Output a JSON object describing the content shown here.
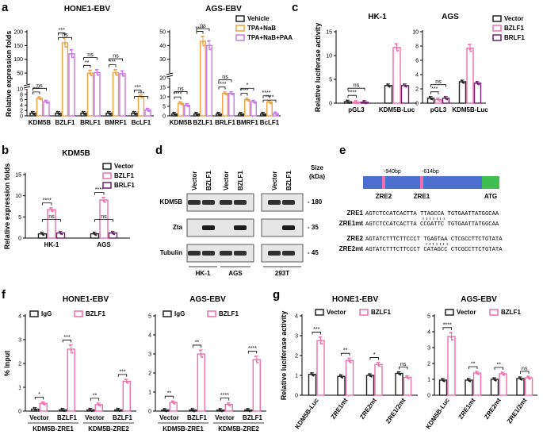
{
  "panels": {
    "a": "a",
    "b": "b",
    "c": "c",
    "d": "d",
    "e": "e",
    "f": "f",
    "g": "g"
  },
  "colors": {
    "vector": "#222222",
    "bzlf1": "#f06ea9",
    "brlf1": "#6e1f6e",
    "vehicle": "#222222",
    "tpa_nab": "#f0a13c",
    "tpa_nab_paa": "#c878e8",
    "promoter": "#4a6fcf",
    "zre": "#f06ea9",
    "atg": "#3fbf4f"
  },
  "chart_data": [
    {
      "id": "a1",
      "type": "bar",
      "title": "HONE1-EBV",
      "ylabel": "Relative expression folds",
      "categories": [
        "KDM5B",
        "BZLF1",
        "BRLF1",
        "BMRF1",
        "BcLF1"
      ],
      "series": [
        {
          "name": "Vehicle",
          "values": [
            1,
            1,
            1,
            1,
            1
          ]
        },
        {
          "name": "TPA+NaB",
          "values": [
            6.5,
            160,
            50,
            52,
            7.2
          ]
        },
        {
          "name": "TPA+NaB+PAA",
          "values": [
            5.2,
            120,
            52,
            48,
            2.2
          ]
        }
      ],
      "yticks": [
        "0",
        "2",
        "4",
        "6",
        "8",
        "10",
        "50",
        "100",
        "150",
        "200"
      ],
      "stats": [
        {
          "labels": [
            "***",
            "ns"
          ]
        },
        {
          "labels": [
            "***",
            "ns"
          ]
        },
        {
          "labels": [
            "**",
            "ns"
          ]
        },
        {
          "labels": [
            "***",
            "ns"
          ]
        },
        {
          "labels": [
            "***",
            "***"
          ]
        }
      ]
    },
    {
      "id": "a2",
      "type": "bar",
      "title": "AGS-EBV",
      "categories": [
        "KDM5B",
        "BZLF1",
        "BRLF1",
        "BMRF1",
        "BcLF1"
      ],
      "series": [
        {
          "name": "Vehicle",
          "values": [
            1,
            1,
            1,
            1,
            1
          ]
        },
        {
          "name": "TPA+NaB",
          "values": [
            6.6,
            43,
            11.8,
            8.5,
            7.2
          ]
        },
        {
          "name": "TPA+NaB+PAA",
          "values": [
            5.6,
            40,
            11.8,
            7.4,
            1.2
          ]
        }
      ],
      "yticks": [
        "0",
        "5",
        "10",
        "15",
        "20",
        "30",
        "40",
        "50"
      ],
      "stats": [
        {
          "labels": [
            "****",
            "ns"
          ]
        },
        {
          "labels": [
            "****",
            "ns"
          ]
        },
        {
          "labels": [
            "****",
            "ns"
          ]
        },
        {
          "labels": [
            "****",
            "*"
          ]
        },
        {
          "labels": [
            "****",
            "****"
          ]
        }
      ]
    },
    {
      "id": "b",
      "type": "bar",
      "title": "KDM5B",
      "ylabel": "Relative expression folds",
      "categories": [
        "HK-1",
        "AGS"
      ],
      "series": [
        {
          "name": "Vector",
          "values": [
            1,
            1
          ]
        },
        {
          "name": "BZLF1",
          "values": [
            6.7,
            9.0
          ]
        },
        {
          "name": "BRLF1",
          "values": [
            1.2,
            1.2
          ]
        }
      ],
      "ylim": [
        0,
        15
      ],
      "yticks": [
        "0",
        "5",
        "10",
        "15"
      ],
      "stats": [
        {
          "labels": [
            "****",
            "ns"
          ]
        },
        {
          "labels": [
            "****",
            "ns"
          ]
        }
      ]
    },
    {
      "id": "c1",
      "type": "bar",
      "title": "HK-1",
      "ylabel": "Relative luciferase activity",
      "categories": [
        "pGL3",
        "KDM5B-Luc"
      ],
      "series": [
        {
          "name": "Vector",
          "values": [
            0.3,
            3.7
          ]
        },
        {
          "name": "BZLF1",
          "values": [
            0.2,
            11.7
          ]
        },
        {
          "name": "BRLF1",
          "values": [
            0.2,
            3.7
          ]
        }
      ],
      "ylim": [
        0,
        15
      ],
      "yticks": [
        "0",
        "5",
        "10",
        "15"
      ],
      "stats": [
        {
          "labels": [
            "****",
            "ns"
          ]
        }
      ]
    },
    {
      "id": "c2",
      "type": "bar",
      "title": "AGS",
      "categories": [
        "pGL3",
        "KDM5B-Luc"
      ],
      "series": [
        {
          "name": "Vector",
          "values": [
            0.7,
            3.0
          ]
        },
        {
          "name": "BZLF1",
          "values": [
            0.5,
            7.7
          ]
        },
        {
          "name": "BRLF1",
          "values": [
            0.7,
            2.8
          ]
        }
      ],
      "ylim": [
        0,
        10
      ],
      "yticks": [
        "0",
        "2",
        "4",
        "6",
        "8",
        "10"
      ],
      "stats": [
        {
          "labels": [
            "***",
            "ns"
          ]
        }
      ]
    },
    {
      "id": "f1",
      "type": "bar",
      "title": "HONE1-EBV",
      "ylabel": "% Input",
      "categories": [
        "Vector",
        "BZLF1",
        "Vector",
        "BZLF1"
      ],
      "group_labels": [
        "KDM5B-ZRE1",
        "KDM5B-ZRE2"
      ],
      "series": [
        {
          "name": "IgG",
          "values": [
            0.08,
            0.05,
            0.05,
            0.05
          ]
        },
        {
          "name": "BZLF1",
          "values": [
            0.32,
            2.6,
            0.27,
            1.25
          ]
        }
      ],
      "ylim": [
        0,
        4
      ],
      "yticks": [
        "0",
        "1",
        "2",
        "3",
        "4"
      ],
      "stats": [
        {
          "labels": [
            "*"
          ]
        },
        {
          "labels": [
            "***"
          ]
        },
        {
          "labels": [
            "**"
          ]
        },
        {
          "labels": [
            "***"
          ]
        }
      ]
    },
    {
      "id": "f2",
      "type": "bar",
      "title": "AGS-EBV",
      "categories": [
        "Vector",
        "BZLF1",
        "Vector",
        "BZLF1"
      ],
      "group_labels": [
        "KDM5B-ZRE1",
        "KDM5B-ZRE2"
      ],
      "series": [
        {
          "name": "IgG",
          "values": [
            0.05,
            0.05,
            0.05,
            0.05
          ]
        },
        {
          "name": "BZLF1",
          "values": [
            0.45,
            3.0,
            0.35,
            2.7
          ]
        }
      ],
      "ylim": [
        0,
        5
      ],
      "yticks": [
        "0",
        "1",
        "2",
        "3",
        "4",
        "5"
      ],
      "stats": [
        {
          "labels": [
            "**"
          ]
        },
        {
          "labels": [
            "**"
          ]
        },
        {
          "labels": [
            "****"
          ]
        },
        {
          "labels": [
            "****"
          ]
        }
      ]
    },
    {
      "id": "g1",
      "type": "bar",
      "title": "HONE1-EBV",
      "ylabel": "Relative luciferase activity",
      "categories": [
        "KDM5B-Luc",
        "ZRE1mt",
        "ZRE2mt",
        "ZRE1/2mt"
      ],
      "series": [
        {
          "name": "Vector",
          "values": [
            1.05,
            0.95,
            1.0,
            1.1
          ]
        },
        {
          "name": "BZLF1",
          "values": [
            2.75,
            1.75,
            1.55,
            0.9
          ]
        }
      ],
      "ylim": [
        0,
        4
      ],
      "yticks": [
        "0",
        "1",
        "2",
        "3",
        "4"
      ],
      "stats": [
        {
          "labels": [
            "***"
          ]
        },
        {
          "labels": [
            "**"
          ]
        },
        {
          "labels": [
            "*"
          ]
        },
        {
          "labels": [
            "ns"
          ]
        }
      ]
    },
    {
      "id": "g2",
      "type": "bar",
      "title": "AGS-EBV",
      "categories": [
        "KDM5B-Luc",
        "ZRE1mt",
        "ZRE2mt",
        "ZRE1/2mt"
      ],
      "series": [
        {
          "name": "Vector",
          "values": [
            0.95,
            0.95,
            1.0,
            1.05
          ]
        },
        {
          "name": "BZLF1",
          "values": [
            3.7,
            1.4,
            1.35,
            1.1
          ]
        }
      ],
      "ylim": [
        0,
        5
      ],
      "yticks": [
        "0",
        "1",
        "2",
        "3",
        "4",
        "5"
      ],
      "stats": [
        {
          "labels": [
            "****"
          ]
        },
        {
          "labels": [
            "**"
          ]
        },
        {
          "labels": [
            "**"
          ]
        },
        {
          "labels": [
            "ns"
          ]
        }
      ]
    }
  ],
  "western": {
    "lanes": [
      "Vector",
      "BZLF1",
      "Vector",
      "BZLF1",
      "Vector",
      "BZLF1"
    ],
    "rows": [
      "KDM5B",
      "Zta",
      "Tubulin"
    ],
    "size_header": "Size\n(kDa)",
    "size_title": "Size",
    "size_unit": "(kDa)",
    "sizes": [
      "180",
      "35",
      "45"
    ],
    "groups": [
      "HK-1",
      "AGS",
      "293T"
    ]
  },
  "promoter": {
    "positions": [
      "-940bp",
      "-614bp"
    ],
    "zre_labels": [
      "ZRE2",
      "ZRE1"
    ],
    "atg": "ATG",
    "sequences": [
      {
        "name": "ZRE1",
        "seq": "AGTCTCCATCACTTA TTAGCCA TGTGAATTATGGCAA"
      },
      {
        "name": "ZRE1mt",
        "seq": "AGTCTCCATCACTTA CCGATTC TGTGAATTATGGCAA"
      },
      {
        "name": "ZRE2",
        "seq": "AGTATCTTTCTTCCCT TGAGTAA CTCGCCTTCTGTATA"
      },
      {
        "name": "ZRE2mt",
        "seq": "AGTATCTTTCTTCCCT CATAGCC CTCGCCTTCTGTATA"
      }
    ]
  }
}
